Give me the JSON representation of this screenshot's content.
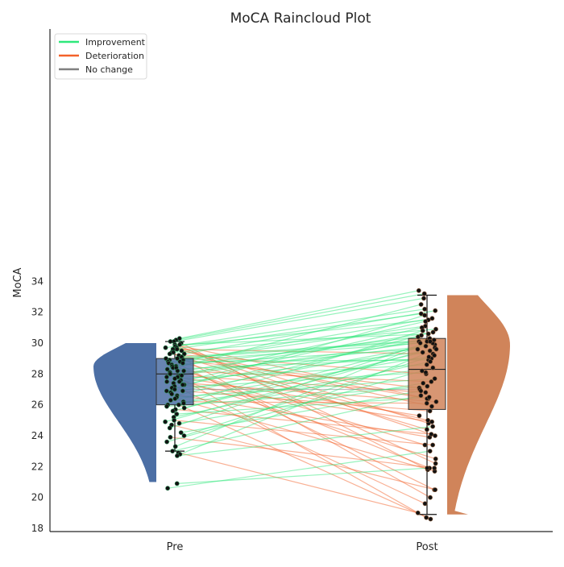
{
  "chart_data": {
    "type": "raincloud",
    "title": "MoCA Raincloud Plot",
    "xlabel": "",
    "ylabel": "MoCA",
    "categories": [
      "Pre",
      "Post"
    ],
    "ylim": [
      18,
      34
    ],
    "yticks": [
      18,
      20,
      22,
      24,
      26,
      28,
      30,
      32,
      34
    ],
    "grid": false,
    "legend": {
      "placement": "top-left",
      "entries": [
        {
          "label": "Improvement",
          "color": "#2ee87a"
        },
        {
          "label": "Deterioration",
          "color": "#f4622a"
        },
        {
          "label": "No change",
          "color": "#808080"
        }
      ]
    },
    "series": [
      {
        "name": "Pre",
        "color": "#4c6fa5",
        "box": {
          "whisker_low": 23.0,
          "q1": 26.0,
          "median": 28.0,
          "q3": 29.0,
          "whisker_high": 30.1
        },
        "density_range": [
          21.0,
          30.0
        ],
        "density_mode": 28.5
      },
      {
        "name": "Post",
        "color": "#d0845a",
        "box": {
          "whisker_low": 18.9,
          "q1": 25.7,
          "median": 28.3,
          "q3": 30.3,
          "whisker_high": 33.1
        },
        "density_range": [
          18.9,
          33.1
        ],
        "density_mode": 29.9
      }
    ],
    "pairs": [
      [
        30.3,
        33.4
      ],
      [
        30.2,
        33.2
      ],
      [
        30.1,
        32.9
      ],
      [
        30.1,
        22.2
      ],
      [
        30.0,
        21.8
      ],
      [
        29.9,
        30.6
      ],
      [
        29.9,
        26.4
      ],
      [
        29.8,
        24.8
      ],
      [
        29.8,
        31.5
      ],
      [
        29.7,
        32.2
      ],
      [
        29.7,
        24.0
      ],
      [
        29.6,
        29.3
      ],
      [
        29.6,
        31.9
      ],
      [
        29.5,
        25.9
      ],
      [
        29.4,
        20.0
      ],
      [
        29.4,
        30.9
      ],
      [
        29.3,
        28.0
      ],
      [
        29.3,
        32.1
      ],
      [
        29.2,
        26.4
      ],
      [
        29.1,
        30.2
      ],
      [
        29.1,
        24.4
      ],
      [
        29.0,
        27.1
      ],
      [
        29.0,
        30.1
      ],
      [
        28.9,
        31.1
      ],
      [
        28.9,
        20.5
      ],
      [
        28.8,
        28.9
      ],
      [
        28.8,
        30.0
      ],
      [
        28.7,
        25.0
      ],
      [
        28.7,
        31.6
      ],
      [
        28.6,
        29.6
      ],
      [
        28.5,
        21.9
      ],
      [
        28.5,
        30.4
      ],
      [
        28.4,
        23.4
      ],
      [
        28.4,
        32.5
      ],
      [
        28.3,
        29.0
      ],
      [
        28.2,
        27.5
      ],
      [
        28.2,
        30.7
      ],
      [
        28.1,
        18.7
      ],
      [
        28.0,
        29.8
      ],
      [
        27.9,
        26.8
      ],
      [
        27.9,
        31.4
      ],
      [
        27.8,
        25.3
      ],
      [
        27.8,
        30.1
      ],
      [
        27.7,
        28.6
      ],
      [
        27.6,
        22.5
      ],
      [
        27.5,
        31.0
      ],
      [
        27.5,
        26.2
      ],
      [
        27.4,
        29.5
      ],
      [
        27.3,
        24.9
      ],
      [
        27.3,
        30.3
      ],
      [
        27.2,
        19.6
      ],
      [
        27.1,
        28.1
      ],
      [
        27.0,
        27.0
      ],
      [
        26.9,
        31.8
      ],
      [
        26.9,
        25.6
      ],
      [
        26.8,
        29.9
      ],
      [
        26.7,
        23.9
      ],
      [
        26.6,
        30.5
      ],
      [
        26.5,
        27.7
      ],
      [
        26.4,
        21.7
      ],
      [
        26.3,
        29.2
      ],
      [
        26.2,
        26.1
      ],
      [
        26.1,
        30.8
      ],
      [
        26.0,
        28.4
      ],
      [
        26.0,
        18.6
      ],
      [
        25.9,
        27.2
      ],
      [
        25.8,
        29.4
      ],
      [
        25.7,
        24.1
      ],
      [
        25.6,
        30.0
      ],
      [
        25.4,
        26.5
      ],
      [
        25.2,
        28.8
      ],
      [
        25.0,
        23.4
      ],
      [
        24.9,
        29.7
      ],
      [
        24.8,
        27.4
      ],
      [
        24.7,
        20.5
      ],
      [
        24.5,
        30.1
      ],
      [
        24.2,
        26.9
      ],
      [
        24.0,
        29.1
      ],
      [
        23.9,
        21.9
      ],
      [
        23.6,
        28.2
      ],
      [
        23.3,
        30.2
      ],
      [
        23.0,
        26.6
      ],
      [
        22.9,
        19.0
      ],
      [
        22.8,
        29.6
      ],
      [
        22.7,
        24.6
      ],
      [
        20.9,
        21.9
      ],
      [
        20.6,
        23.0
      ]
    ]
  }
}
